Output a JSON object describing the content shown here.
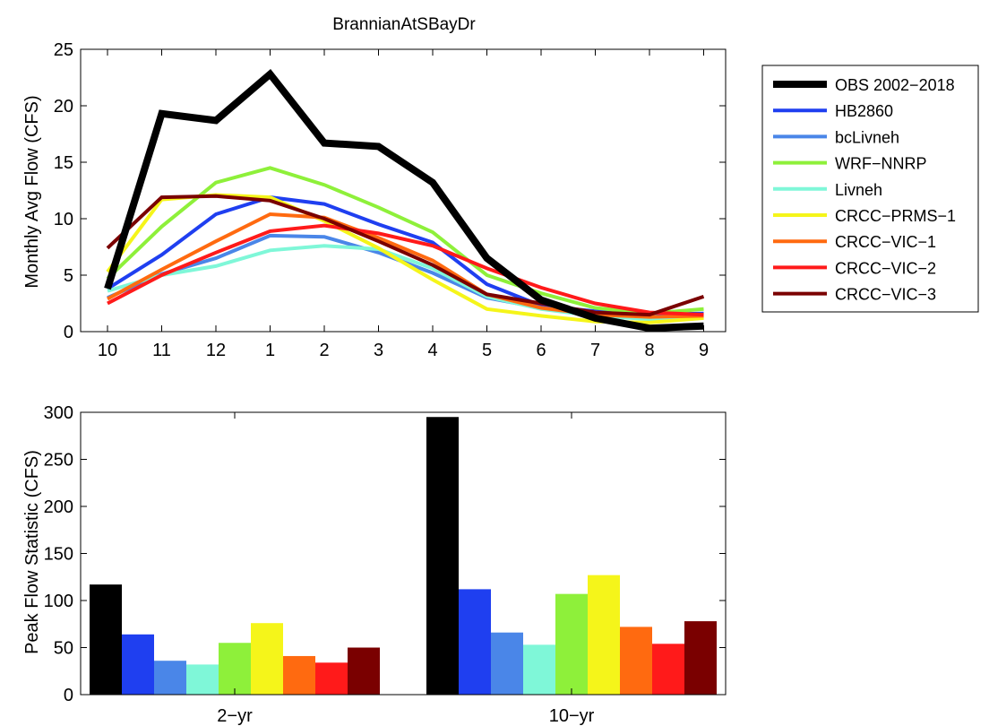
{
  "chart_data": [
    {
      "type": "line",
      "title": "BrannianAtSBayDr",
      "xlabel": "",
      "ylabel": "Monthly Avg Flow (CFS)",
      "categories": [
        "10",
        "11",
        "12",
        "1",
        "2",
        "3",
        "4",
        "5",
        "6",
        "7",
        "8",
        "9"
      ],
      "ylim": [
        0,
        25
      ],
      "yticks": [
        0,
        5,
        10,
        15,
        20,
        25
      ],
      "grid": false,
      "legend_position": "outside-right",
      "series": [
        {
          "name": "OBS 2002−2018",
          "color": "#000000",
          "values": [
            3.8,
            19.3,
            18.7,
            22.8,
            16.7,
            16.4,
            13.2,
            6.5,
            2.8,
            1.2,
            0.3,
            0.5
          ]
        },
        {
          "name": "HB2860",
          "color": "#1f3ff0",
          "values": [
            3.8,
            6.8,
            10.4,
            11.9,
            11.3,
            9.5,
            7.9,
            4.2,
            2.3,
            1.8,
            1.5,
            1.6
          ]
        },
        {
          "name": "bcLivneh",
          "color": "#4a86e8",
          "values": [
            3.0,
            5.1,
            6.5,
            8.5,
            8.4,
            7.0,
            5.2,
            3.0,
            2.1,
            1.5,
            1.2,
            1.4
          ]
        },
        {
          "name": "WRF−NNRP",
          "color": "#8ef03a",
          "values": [
            4.7,
            9.3,
            13.2,
            14.5,
            13.0,
            11.0,
            8.8,
            5.0,
            3.4,
            2.1,
            1.6,
            2.0
          ]
        },
        {
          "name": "Livneh",
          "color": "#7ff7d8",
          "values": [
            3.6,
            5.0,
            5.8,
            7.2,
            7.6,
            7.3,
            5.6,
            3.1,
            2.0,
            1.4,
            1.1,
            1.3
          ]
        },
        {
          "name": "CRCC−PRMS−1",
          "color": "#f5f51a",
          "values": [
            5.3,
            11.7,
            12.1,
            11.9,
            9.8,
            7.4,
            4.6,
            2.0,
            1.4,
            0.9,
            0.8,
            1.2
          ]
        },
        {
          "name": "CRCC−VIC−1",
          "color": "#ff6a10",
          "values": [
            2.9,
            5.5,
            8.0,
            10.4,
            10.1,
            8.3,
            6.3,
            3.3,
            2.1,
            1.5,
            1.3,
            1.4
          ]
        },
        {
          "name": "CRCC−VIC−2",
          "color": "#ff1a1a",
          "values": [
            2.5,
            5.0,
            7.0,
            8.9,
            9.4,
            8.7,
            7.6,
            5.6,
            3.9,
            2.5,
            1.7,
            1.5
          ]
        },
        {
          "name": "CRCC−VIC−3",
          "color": "#7a0000",
          "values": [
            7.4,
            11.9,
            12.0,
            11.6,
            10.0,
            8.0,
            5.9,
            3.3,
            2.5,
            1.7,
            1.5,
            3.1
          ]
        }
      ]
    },
    {
      "type": "bar",
      "title": "",
      "xlabel": "",
      "ylabel": "Peak Flow Statistic (CFS)",
      "categories": [
        "2−yr",
        "10−yr"
      ],
      "ylim": [
        0,
        300
      ],
      "yticks": [
        0,
        50,
        100,
        150,
        200,
        250,
        300
      ],
      "grid": false,
      "series": [
        {
          "color": "#000000",
          "values": [
            117,
            295
          ]
        },
        {
          "color": "#1f3ff0",
          "values": [
            64,
            112
          ]
        },
        {
          "color": "#4a86e8",
          "values": [
            36,
            66
          ]
        },
        {
          "color": "#7ff7d8",
          "values": [
            32,
            53
          ]
        },
        {
          "color": "#8ef03a",
          "values": [
            55,
            107
          ]
        },
        {
          "color": "#f5f51a",
          "values": [
            76,
            127
          ]
        },
        {
          "color": "#ff6a10",
          "values": [
            41,
            72
          ]
        },
        {
          "color": "#ff1a1a",
          "values": [
            34,
            54
          ]
        },
        {
          "color": "#7a0000",
          "values": [
            50,
            78
          ]
        }
      ]
    }
  ]
}
